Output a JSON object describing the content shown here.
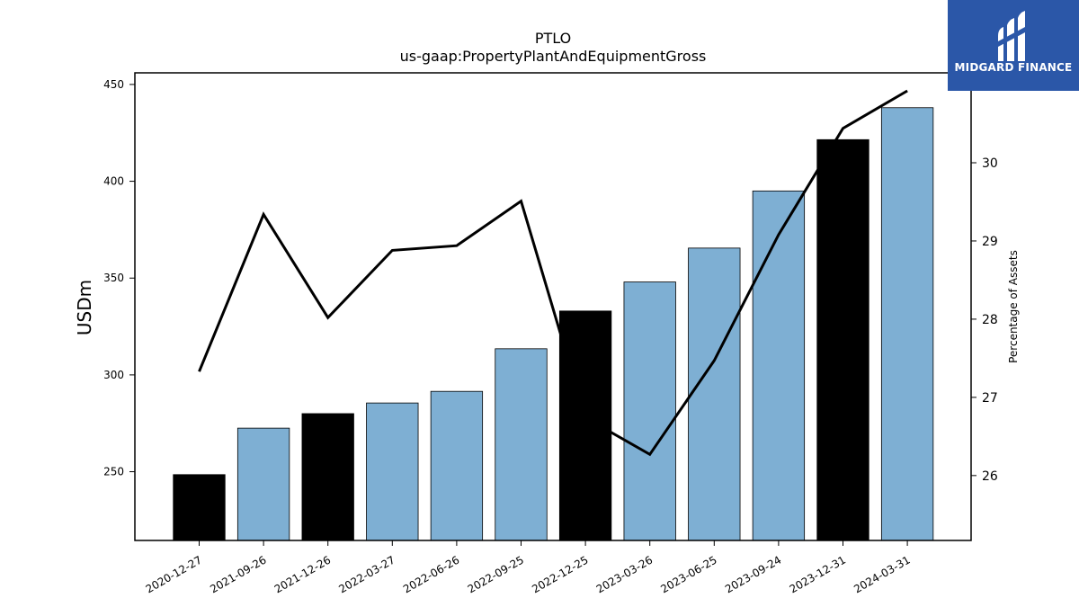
{
  "chart_data": {
    "type": "bar",
    "title": "PTLO",
    "subtitle": "us-gaap:PropertyPlantAndEquipmentGross",
    "ylabel": "USDm",
    "y2label": "Percentage of Assets",
    "categories": [
      "2020-12-27",
      "2021-09-26",
      "2021-12-26",
      "2022-03-27",
      "2022-06-26",
      "2022-09-25",
      "2022-12-25",
      "2023-03-26",
      "2023-06-25",
      "2023-09-24",
      "2023-12-31",
      "2024-03-31"
    ],
    "series": [
      {
        "type": "bar",
        "values": [
          248.5,
          272.5,
          280.0,
          285.5,
          291.5,
          313.5,
          333.0,
          348.0,
          365.5,
          395.0,
          421.5,
          438.0
        ],
        "colors": [
          "#000000",
          "#7eafd3",
          "#000000",
          "#7eafd3",
          "#7eafd3",
          "#7eafd3",
          "#000000",
          "#7eafd3",
          "#7eafd3",
          "#7eafd3",
          "#000000",
          "#7eafd3"
        ]
      },
      {
        "type": "line",
        "axis": "right",
        "values": [
          27.33,
          29.34,
          28.02,
          28.88,
          28.94,
          29.51,
          26.74,
          26.27,
          27.47,
          29.08,
          30.44,
          30.92
        ],
        "color": "#000000"
      }
    ],
    "ylim": [
      214.5,
      456
    ],
    "yticks": [
      250,
      300,
      350,
      400,
      450
    ],
    "y2lim": [
      25.17,
      31.15
    ],
    "y2ticks": [
      26,
      27,
      28,
      29,
      30
    ],
    "grid": false
  },
  "logo": {
    "text": "MIDGARD FINANCE",
    "background": "#2b57a8"
  }
}
